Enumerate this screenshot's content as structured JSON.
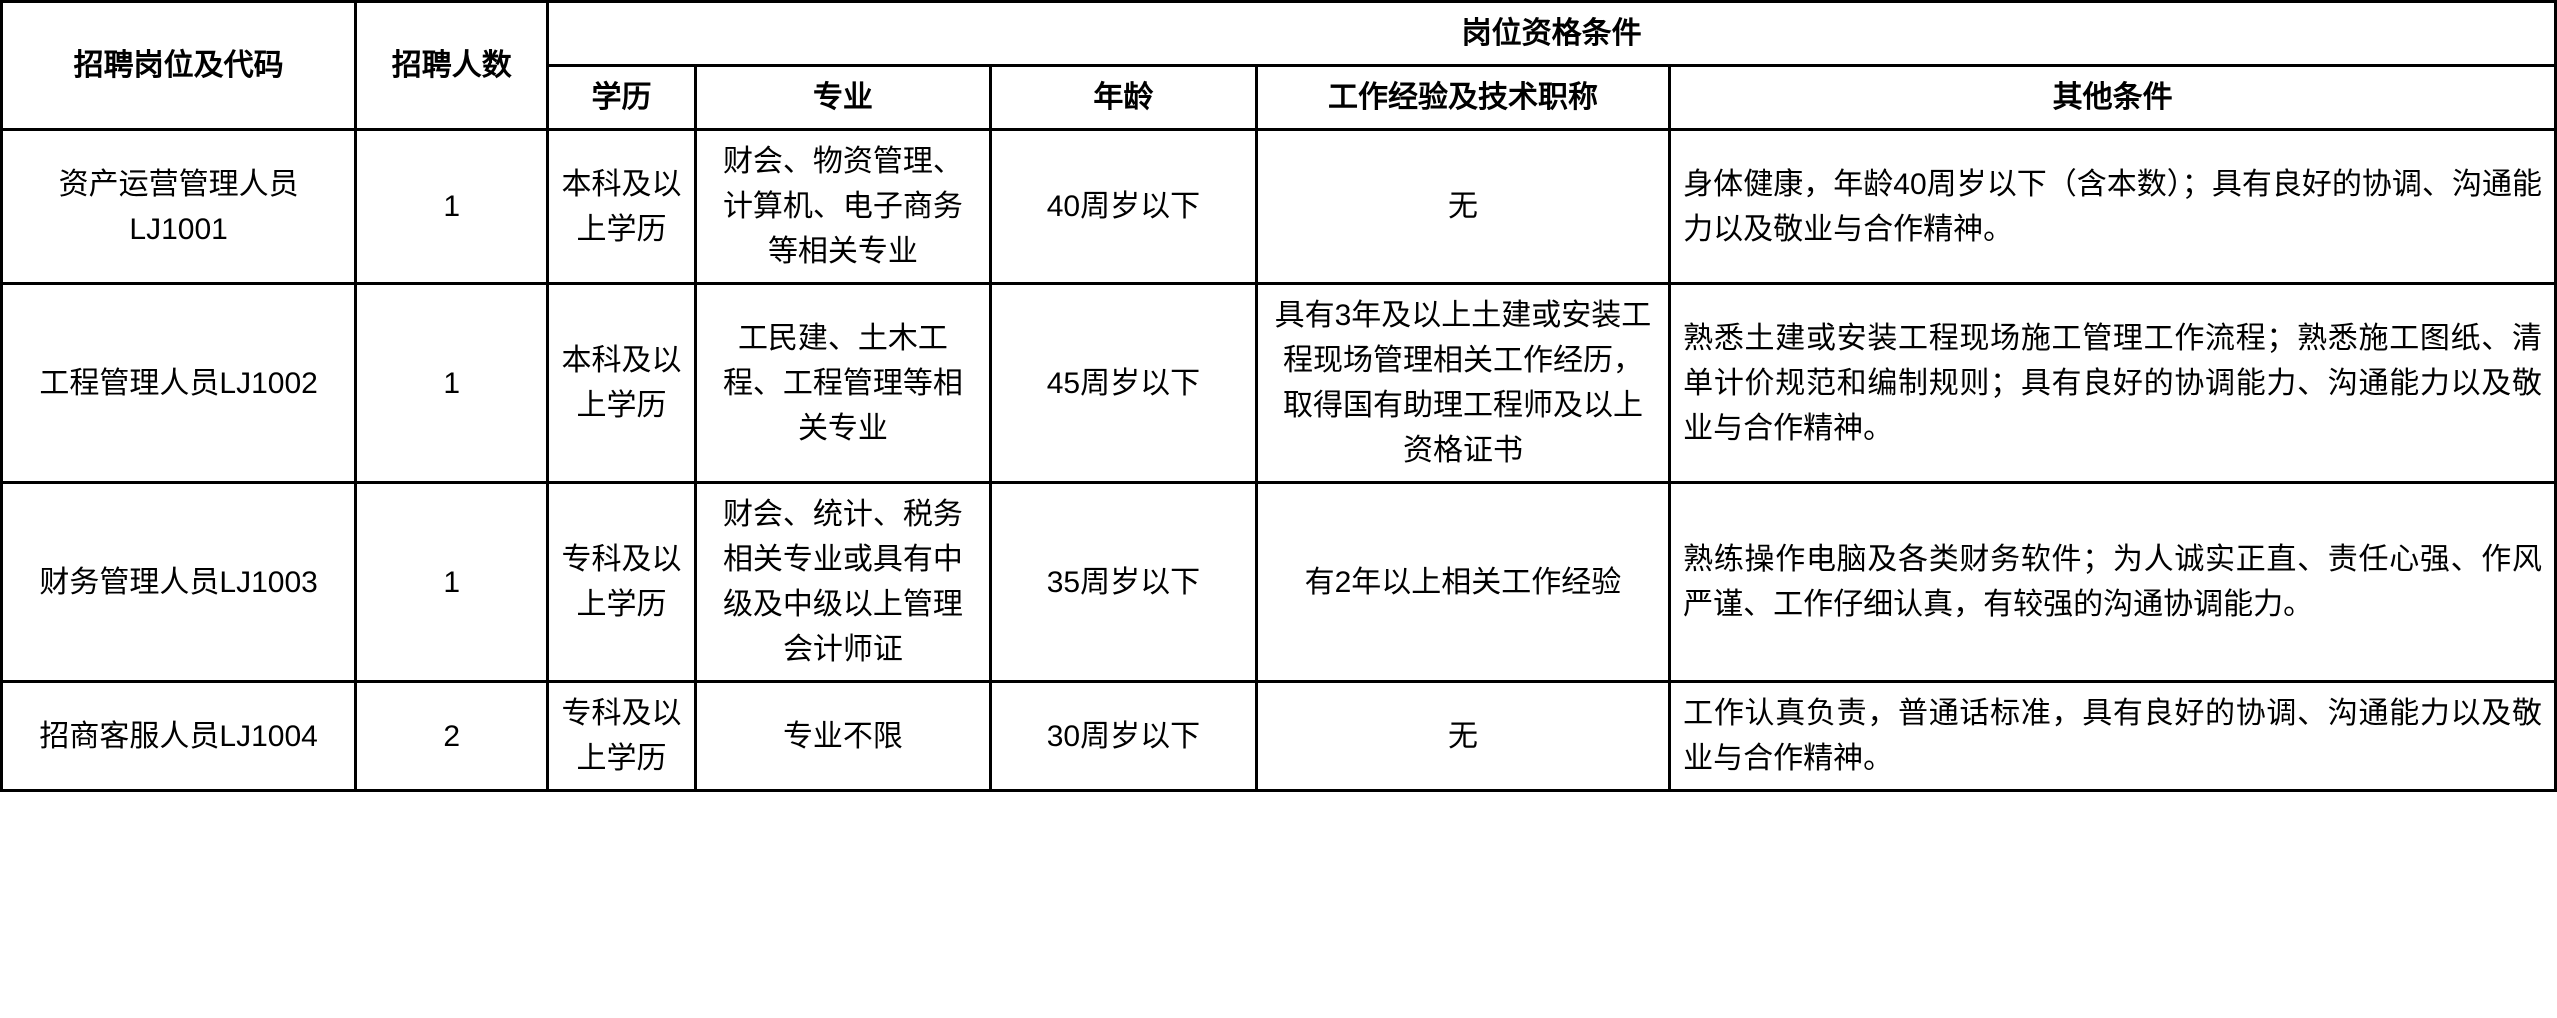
{
  "table": {
    "headers": {
      "position_code": "招聘岗位及代码",
      "count": "招聘人数",
      "qualification_group": "岗位资格条件",
      "education": "学历",
      "major": "专业",
      "age": "年龄",
      "experience": "工作经验及技术职称",
      "other": "其他条件"
    },
    "rows": [
      {
        "position_code": "资产运营管理人员LJ1001",
        "count": "1",
        "education": "本科及以上学历",
        "major": "财会、物资管理、计算机、电子商务等相关专业",
        "age": "40周岁以下",
        "experience": "无",
        "other": "身体健康，年龄40周岁以下（含本数）；具有良好的协调、沟通能力以及敬业与合作精神。"
      },
      {
        "position_code": "工程管理人员LJ1002",
        "count": "1",
        "education": "本科及以上学历",
        "major": "工民建、土木工程、工程管理等相关专业",
        "age": "45周岁以下",
        "experience": "具有3年及以上土建或安装工程现场管理相关工作经历，取得国有助理工程师及以上资格证书",
        "other": "熟悉土建或安装工程现场施工管理工作流程；熟悉施工图纸、清单计价规范和编制规则；具有良好的协调能力、沟通能力以及敬业与合作精神。"
      },
      {
        "position_code": "财务管理人员LJ1003",
        "count": "1",
        "education": "专科及以上学历",
        "major": "财会、统计、税务相关专业或具有中级及中级以上管理会计师证",
        "age": "35周岁以下",
        "experience": "有2年以上相关工作经验",
        "other": "熟练操作电脑及各类财务软件；为人诚实正直、责任心强、作风严谨、工作仔细认真，有较强的沟通协调能力。"
      },
      {
        "position_code": "招商客服人员LJ1004",
        "count": "2",
        "education": "专科及以上学历",
        "major": "专业不限",
        "age": "30周岁以下",
        "experience": "无",
        "other": "工作认真负责，普通话标准，具有良好的协调、沟通能力以及敬业与合作精神。"
      }
    ],
    "styling": {
      "border_color": "#000000",
      "border_width": 3,
      "background_color": "#ffffff",
      "text_color": "#000000",
      "font_size": 30,
      "header_font_weight": "bold",
      "cell_padding": "8px 12px",
      "line_height": 1.5
    }
  }
}
